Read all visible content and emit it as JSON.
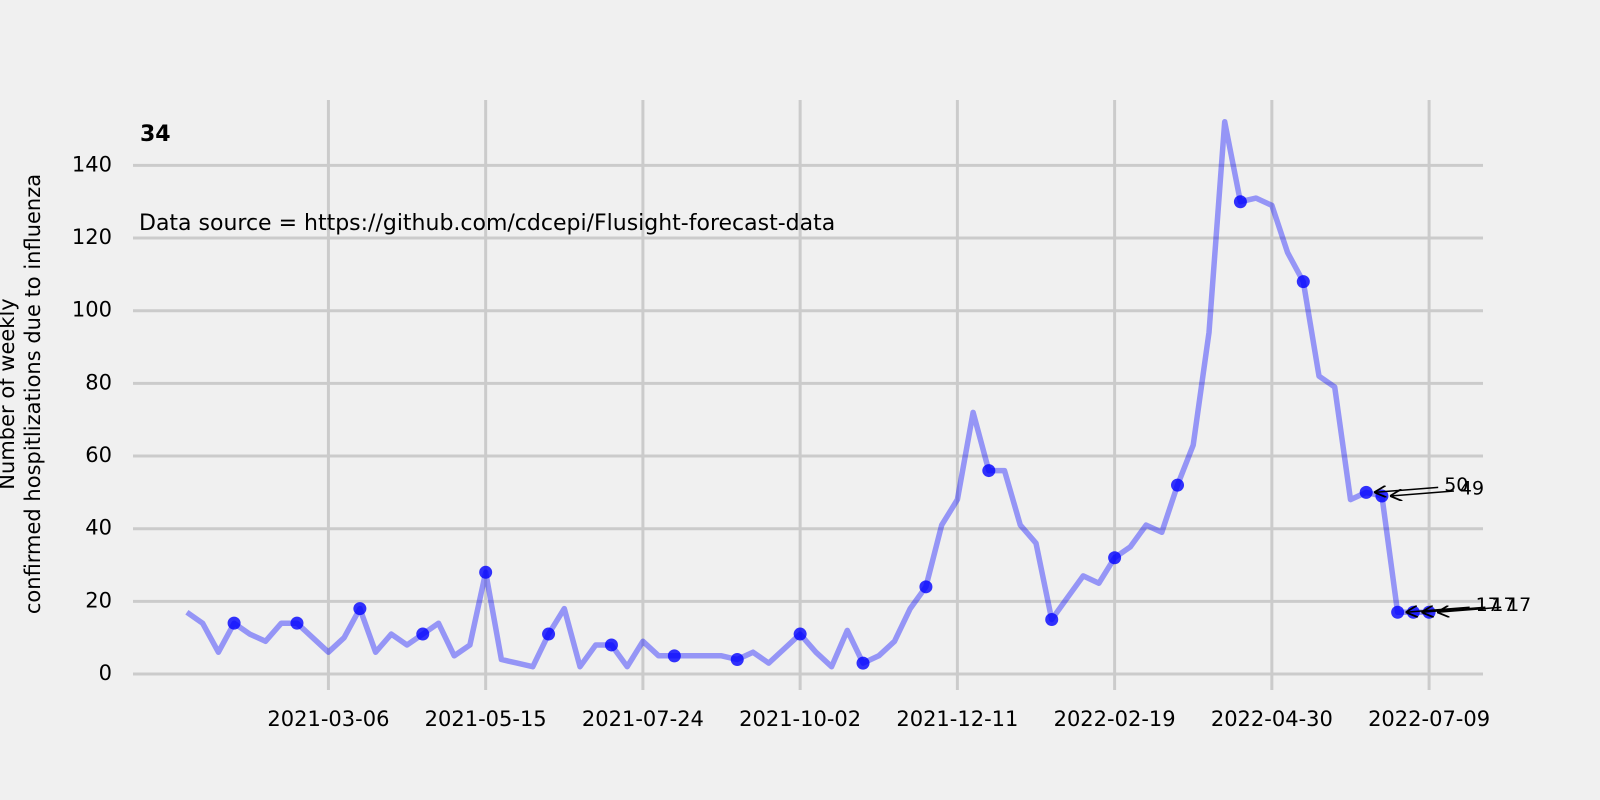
{
  "chart_data": {
    "type": "line",
    "title": "34",
    "annotation": "Data source = https://github.com/cdcepi/Flusight-forecast-data",
    "ylabel": [
      "Number of weekly",
      "confirmed hospitlizations due to influenza"
    ],
    "xlim": [
      "2020-12-09",
      "2022-08-02"
    ],
    "xticks": [
      "2021-03-06",
      "2021-05-15",
      "2021-07-24",
      "2021-10-02",
      "2021-12-11",
      "2022-02-19",
      "2022-04-30",
      "2022-07-09"
    ],
    "ylim": [
      -4.4,
      158
    ],
    "yticks": [
      0,
      20,
      40,
      60,
      80,
      100,
      120,
      140
    ],
    "grid": true,
    "series": [
      {
        "color": "#0000ff",
        "x": [
          "2021-01-02",
          "2021-01-09",
          "2021-01-16",
          "2021-01-23",
          "2021-01-30",
          "2021-02-06",
          "2021-02-13",
          "2021-02-20",
          "2021-02-27",
          "2021-03-06",
          "2021-03-13",
          "2021-03-20",
          "2021-03-27",
          "2021-04-03",
          "2021-04-10",
          "2021-04-17",
          "2021-04-24",
          "2021-05-01",
          "2021-05-08",
          "2021-05-15",
          "2021-05-22",
          "2021-05-29",
          "2021-06-05",
          "2021-06-12",
          "2021-06-19",
          "2021-06-26",
          "2021-07-03",
          "2021-07-10",
          "2021-07-17",
          "2021-07-24",
          "2021-07-31",
          "2021-08-07",
          "2021-08-14",
          "2021-08-21",
          "2021-08-28",
          "2021-09-04",
          "2021-09-11",
          "2021-09-18",
          "2021-09-25",
          "2021-10-02",
          "2021-10-09",
          "2021-10-16",
          "2021-10-23",
          "2021-10-30",
          "2021-11-06",
          "2021-11-13",
          "2021-11-20",
          "2021-11-27",
          "2021-12-04",
          "2021-12-11",
          "2021-12-18",
          "2021-12-25",
          "2022-01-01",
          "2022-01-08",
          "2022-01-15",
          "2022-01-22",
          "2022-01-29",
          "2022-02-05",
          "2022-02-12",
          "2022-02-19",
          "2022-02-26",
          "2022-03-05",
          "2022-03-12",
          "2022-03-19",
          "2022-03-26",
          "2022-04-02",
          "2022-04-09",
          "2022-04-16",
          "2022-04-23",
          "2022-04-30",
          "2022-05-07",
          "2022-05-14",
          "2022-05-21",
          "2022-05-28",
          "2022-06-04",
          "2022-06-11",
          "2022-06-18",
          "2022-06-25",
          "2022-07-02",
          "2022-07-09"
        ],
        "values": [
          17,
          14,
          6,
          14,
          11,
          9,
          14,
          14,
          10,
          6,
          10,
          18,
          6,
          11,
          8,
          11,
          14,
          5,
          8,
          28,
          4,
          3,
          2,
          11,
          18,
          2,
          8,
          8,
          2,
          9,
          5,
          5,
          5,
          5,
          5,
          4,
          6,
          3,
          7,
          11,
          6,
          2,
          12,
          3,
          5,
          9,
          18,
          24,
          41,
          48,
          72,
          56,
          56,
          41,
          36,
          15,
          21,
          27,
          25,
          32,
          35,
          41,
          39,
          52,
          63,
          94,
          152,
          130,
          131,
          129,
          116,
          108,
          82,
          79,
          48,
          50,
          49,
          17,
          17,
          17
        ]
      },
      {
        "color": "#0000ff",
        "x": [
          "2021-01-23",
          "2021-02-20",
          "2021-03-20",
          "2021-04-17",
          "2021-05-15",
          "2021-06-12",
          "2021-07-10",
          "2021-08-07",
          "2021-09-04",
          "2021-10-02",
          "2021-10-30",
          "2021-11-27",
          "2021-12-25",
          "2022-01-22",
          "2022-02-19",
          "2022-03-19",
          "2022-04-16",
          "2022-05-14",
          "2022-06-11",
          "2022-06-18",
          "2022-06-25",
          "2022-07-02",
          "2022-07-09"
        ],
        "values": [
          14,
          14,
          18,
          11,
          28,
          11,
          8,
          5,
          4,
          11,
          3,
          24,
          56,
          15,
          32,
          52,
          130,
          108,
          50,
          49,
          17,
          17,
          17
        ]
      }
    ],
    "point_labels": [
      {
        "x": "2022-06-11",
        "value": 50,
        "label": "50"
      },
      {
        "x": "2022-06-18",
        "value": 49,
        "label": "49"
      },
      {
        "x": "2022-06-25",
        "value": 17,
        "label": "17"
      },
      {
        "x": "2022-07-02",
        "value": 17,
        "label": "17"
      },
      {
        "x": "2022-07-09",
        "value": 17,
        "label": "17"
      }
    ]
  }
}
